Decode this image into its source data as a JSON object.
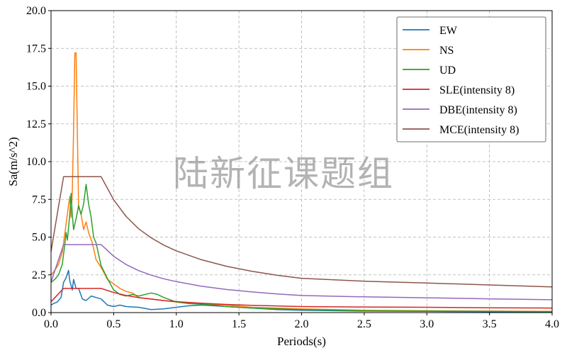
{
  "watermark": "陆新征课题组",
  "chart_data": {
    "type": "line",
    "title": "",
    "xlabel": "Periods(s)",
    "ylabel": "Sa(m/s^2)",
    "xlim": [
      0,
      4
    ],
    "ylim": [
      0,
      20
    ],
    "xticks": [
      "0.0",
      "0.5",
      "1.0",
      "1.5",
      "2.0",
      "2.5",
      "3.0",
      "3.5",
      "4.0"
    ],
    "yticks": [
      "0.0",
      "2.5",
      "5.0",
      "7.5",
      "10.0",
      "12.5",
      "15.0",
      "17.5",
      "20.0"
    ],
    "grid": true,
    "legend_position": "top-right",
    "series": [
      {
        "name": "EW",
        "color": "#1f77b4",
        "x": [
          0,
          0.02,
          0.05,
          0.08,
          0.1,
          0.12,
          0.14,
          0.15,
          0.17,
          0.18,
          0.2,
          0.22,
          0.25,
          0.28,
          0.32,
          0.36,
          0.4,
          0.45,
          0.5,
          0.55,
          0.6,
          0.7,
          0.8,
          0.9,
          1.0,
          1.1,
          1.2,
          1.3,
          1.5,
          1.8,
          2.0,
          2.5,
          3.0,
          3.5,
          4.0
        ],
        "y": [
          0.5,
          0.6,
          0.7,
          1.0,
          2.0,
          2.3,
          2.8,
          2.1,
          1.5,
          2.2,
          1.6,
          1.6,
          0.9,
          0.8,
          1.1,
          1.0,
          0.9,
          0.5,
          0.4,
          0.5,
          0.4,
          0.35,
          0.2,
          0.25,
          0.35,
          0.45,
          0.5,
          0.45,
          0.35,
          0.2,
          0.15,
          0.1,
          0.08,
          0.06,
          0.05
        ]
      },
      {
        "name": "NS",
        "color": "#ff7f0e",
        "x": [
          0,
          0.03,
          0.06,
          0.09,
          0.11,
          0.13,
          0.15,
          0.16,
          0.17,
          0.18,
          0.19,
          0.2,
          0.21,
          0.22,
          0.24,
          0.26,
          0.28,
          0.3,
          0.33,
          0.36,
          0.4,
          0.45,
          0.5,
          0.55,
          0.6,
          0.65,
          0.7,
          0.8,
          0.9,
          1.0,
          1.1,
          1.2,
          1.4,
          1.6,
          2.0,
          2.5,
          3.0,
          3.5,
          4.0
        ],
        "y": [
          2.5,
          2.8,
          3.2,
          4.0,
          5.2,
          6.5,
          7.7,
          6.3,
          8.0,
          12.0,
          17.2,
          17.2,
          12.0,
          7.0,
          6.5,
          5.5,
          6.0,
          5.3,
          4.6,
          3.5,
          3.0,
          2.2,
          1.9,
          1.6,
          1.4,
          1.3,
          1.0,
          0.9,
          0.8,
          0.7,
          0.65,
          0.6,
          0.5,
          0.35,
          0.25,
          0.15,
          0.12,
          0.1,
          0.08
        ]
      },
      {
        "name": "UD",
        "color": "#2ca02c",
        "x": [
          0,
          0.03,
          0.06,
          0.09,
          0.11,
          0.12,
          0.13,
          0.15,
          0.16,
          0.17,
          0.18,
          0.2,
          0.22,
          0.24,
          0.26,
          0.28,
          0.3,
          0.32,
          0.34,
          0.36,
          0.4,
          0.43,
          0.46,
          0.5,
          0.55,
          0.6,
          0.65,
          0.7,
          0.8,
          0.85,
          0.9,
          1.0,
          1.1,
          1.2,
          1.3,
          1.4,
          1.6,
          2.0,
          2.5,
          3.0,
          3.5,
          4.0
        ],
        "y": [
          2.0,
          2.2,
          2.5,
          3.2,
          4.5,
          5.3,
          4.8,
          6.5,
          7.9,
          6.5,
          5.5,
          6.2,
          7.1,
          6.5,
          7.2,
          8.5,
          7.2,
          6.3,
          5.0,
          4.6,
          3.1,
          2.6,
          2.1,
          1.5,
          1.2,
          1.1,
          1.2,
          1.1,
          1.3,
          1.2,
          1.0,
          0.7,
          0.6,
          0.55,
          0.5,
          0.4,
          0.3,
          0.2,
          0.12,
          0.1,
          0.08,
          0.06
        ]
      },
      {
        "name": "SLE(intensity 8)",
        "color": "#d62728",
        "x": [
          0,
          0.05,
          0.1,
          0.15,
          0.2,
          0.25,
          0.3,
          0.35,
          0.4,
          0.5,
          0.6,
          0.7,
          0.8,
          0.9,
          1.0,
          1.2,
          1.4,
          1.6,
          1.8,
          2.0,
          2.5,
          3.0,
          3.5,
          4.0
        ],
        "y": [
          0.72,
          1.16,
          1.6,
          1.6,
          1.6,
          1.6,
          1.6,
          1.6,
          1.6,
          1.33,
          1.13,
          0.99,
          0.89,
          0.8,
          0.73,
          0.62,
          0.54,
          0.48,
          0.44,
          0.4,
          0.37,
          0.35,
          0.32,
          0.3
        ]
      },
      {
        "name": "DBE(intensity 8)",
        "color": "#9467bd",
        "x": [
          0,
          0.05,
          0.1,
          0.15,
          0.2,
          0.25,
          0.3,
          0.35,
          0.4,
          0.5,
          0.6,
          0.7,
          0.8,
          0.9,
          1.0,
          1.2,
          1.4,
          1.6,
          1.8,
          2.0,
          2.5,
          3.0,
          3.5,
          4.0
        ],
        "y": [
          2.03,
          3.26,
          4.5,
          4.5,
          4.5,
          4.5,
          4.5,
          4.5,
          4.5,
          3.73,
          3.18,
          2.78,
          2.48,
          2.24,
          2.05,
          1.75,
          1.53,
          1.37,
          1.24,
          1.13,
          1.04,
          0.98,
          0.91,
          0.85
        ]
      },
      {
        "name": "MCE(intensity 8)",
        "color": "#8c564b",
        "x": [
          0,
          0.05,
          0.1,
          0.15,
          0.2,
          0.25,
          0.3,
          0.35,
          0.4,
          0.5,
          0.6,
          0.7,
          0.8,
          0.9,
          1.0,
          1.2,
          1.4,
          1.6,
          1.8,
          2.0,
          2.5,
          3.0,
          3.5,
          4.0
        ],
        "y": [
          4.05,
          6.53,
          9.0,
          9.0,
          9.0,
          9.0,
          9.0,
          9.0,
          9.0,
          7.47,
          6.36,
          5.55,
          4.95,
          4.47,
          4.09,
          3.5,
          3.07,
          2.74,
          2.48,
          2.27,
          2.08,
          1.96,
          1.83,
          1.7
        ]
      }
    ]
  }
}
